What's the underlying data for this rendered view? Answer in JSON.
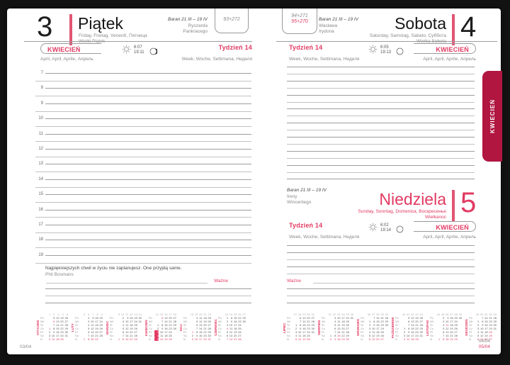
{
  "colors": {
    "accent": "#e23a62",
    "tab": "#b11640",
    "day_bar": "#e25573"
  },
  "side_tab": "KWIECIEŃ",
  "left": {
    "day_number": "3",
    "day_name": "Piątek",
    "day_langs": "Friday, Freitag, Venerdì, Пятница",
    "holiday": "Wielki Piątek",
    "zodiac": "Baran 21 III – 19 IV",
    "name_day_1": "Ryszarda",
    "name_day_2": "Pankracego",
    "day_of_year": "93+272",
    "month": "KWIECIEŃ",
    "month_langs": "April, April, Aprile, Апрель",
    "week": "Tydzień 14",
    "week_langs": "Week, Woche, Settimana, Неделя",
    "sunrise": "6:07",
    "sunset": "19:11",
    "hours": [
      7,
      8,
      9,
      10,
      11,
      12,
      13,
      14,
      15,
      16,
      17,
      18,
      19
    ],
    "quote": "Najpiękniejszych chwil w życiu nie zaplanujesz. One przyjdą same.",
    "quote_author": "Phil Bosmans",
    "important": "Ważne",
    "footer": "03/04"
  },
  "right": {
    "sat": {
      "day_number": "4",
      "day_name": "Sobota",
      "day_langs": "Saturday, Samstag, Sabato, Суббота",
      "holiday": "Wielka Sobota",
      "zodiac": "Baran 21 III – 19 IV",
      "name_day_1": "Wacława",
      "name_day_2": "Irydona",
      "day_of_year_1": "94+271",
      "day_of_year_2": "95+270",
      "sunrise": "6:05",
      "sunset": "19:13"
    },
    "sun": {
      "day_number": "5",
      "day_name": "Niedziela",
      "day_langs": "Sunday, Sonntag, Domenica, Воскресенье",
      "holiday": "Wielkanoc",
      "zodiac": "Baran 21 III – 19 IV",
      "name_day_1": "Ireny",
      "name_day_2": "Wincentego",
      "sunrise": "6:02",
      "sunset": "19:14"
    },
    "month": "KWIECIEŃ",
    "month_langs": "April, April, Aprile, Апрель",
    "week": "Tydzień 14",
    "week_langs": "Week, Woche, Settimana, Неделя",
    "important": "Ważne",
    "footer_1": "04/04",
    "footer_2": "05/04"
  },
  "calendars": {
    "day_labels": [
      "Pn",
      "Wt",
      "Śr",
      "Cz",
      "Pt",
      "So",
      "N"
    ],
    "left_months": [
      {
        "name": "STYCZEŃ",
        "weeks": [
          1,
          2,
          3,
          4,
          5
        ],
        "holidays": [
          1,
          6
        ],
        "rows": [
          [
            "",
            5,
            12,
            19,
            26
          ],
          [
            "",
            6,
            13,
            20,
            27
          ],
          [
            "",
            7,
            14,
            21,
            28
          ],
          [
            1,
            8,
            15,
            22,
            29
          ],
          [
            2,
            9,
            16,
            23,
            30
          ],
          [
            3,
            10,
            17,
            24,
            31
          ],
          [
            4,
            11,
            18,
            25,
            ""
          ]
        ]
      },
      {
        "name": "LUTY",
        "weeks": [
          5,
          6,
          7,
          8,
          9
        ],
        "holidays": [],
        "rows": [
          [
            "",
            2,
            9,
            16,
            23
          ],
          [
            "",
            3,
            10,
            17,
            24
          ],
          [
            "",
            4,
            11,
            18,
            25
          ],
          [
            "",
            5,
            12,
            19,
            26
          ],
          [
            "",
            6,
            13,
            20,
            27
          ],
          [
            "",
            7,
            14,
            21,
            28
          ],
          [
            1,
            8,
            15,
            22,
            ""
          ]
        ]
      },
      {
        "name": "MARZEC",
        "weeks": [
          9,
          10,
          11,
          12,
          13,
          14
        ],
        "holidays": [],
        "rows": [
          [
            "",
            2,
            9,
            16,
            23,
            30
          ],
          [
            "",
            3,
            10,
            17,
            24,
            31
          ],
          [
            "",
            4,
            11,
            18,
            25,
            ""
          ],
          [
            "",
            5,
            12,
            19,
            26,
            ""
          ],
          [
            "",
            6,
            13,
            20,
            27,
            ""
          ],
          [
            "",
            7,
            14,
            21,
            28,
            ""
          ],
          [
            1,
            8,
            15,
            22,
            29,
            ""
          ]
        ]
      },
      {
        "name": "KWIECIEŃ",
        "weeks": [
          14,
          15,
          16,
          17,
          18
        ],
        "holidays": [
          5,
          6
        ],
        "current": [
          3,
          4,
          5
        ],
        "rows": [
          [
            "",
            6,
            13,
            20,
            27
          ],
          [
            "",
            7,
            14,
            21,
            28
          ],
          [
            1,
            8,
            15,
            22,
            29
          ],
          [
            2,
            9,
            16,
            23,
            30
          ],
          [
            3,
            10,
            17,
            24,
            ""
          ],
          [
            4,
            11,
            18,
            25,
            ""
          ],
          [
            5,
            12,
            19,
            26,
            ""
          ]
        ]
      },
      {
        "name": "MAJ",
        "weeks": [
          18,
          19,
          20,
          21,
          22
        ],
        "holidays": [
          1,
          3
        ],
        "rows": [
          [
            "",
            4,
            11,
            18,
            25
          ],
          [
            "",
            5,
            12,
            19,
            26
          ],
          [
            "",
            6,
            13,
            20,
            27
          ],
          [
            "",
            7,
            14,
            21,
            28
          ],
          [
            1,
            8,
            15,
            22,
            29
          ],
          [
            2,
            9,
            16,
            23,
            30
          ],
          [
            3,
            10,
            17,
            24,
            31
          ]
        ]
      },
      {
        "name": "CZERWIEC",
        "weeks": [
          23,
          24,
          25,
          26,
          27
        ],
        "holidays": [
          4
        ],
        "rows": [
          [
            1,
            8,
            15,
            22,
            29
          ],
          [
            2,
            9,
            16,
            23,
            30
          ],
          [
            3,
            10,
            17,
            24,
            ""
          ],
          [
            4,
            11,
            18,
            25,
            ""
          ],
          [
            5,
            12,
            19,
            26,
            ""
          ],
          [
            6,
            13,
            20,
            27,
            ""
          ],
          [
            7,
            14,
            21,
            28,
            ""
          ]
        ]
      }
    ],
    "right_months": [
      {
        "name": "LIPIEC",
        "weeks": [
          27,
          28,
          29,
          30,
          31
        ],
        "holidays": [],
        "rows": [
          [
            "",
            6,
            13,
            20,
            27
          ],
          [
            "",
            7,
            14,
            21,
            28
          ],
          [
            1,
            8,
            15,
            22,
            29
          ],
          [
            2,
            9,
            16,
            23,
            30
          ],
          [
            3,
            10,
            17,
            24,
            31
          ],
          [
            4,
            11,
            18,
            25,
            ""
          ],
          [
            5,
            12,
            19,
            26,
            ""
          ]
        ]
      },
      {
        "name": "SIERPIEŃ",
        "weeks": [
          31,
          32,
          33,
          34,
          35,
          36
        ],
        "holidays": [
          15
        ],
        "rows": [
          [
            "",
            3,
            10,
            17,
            24,
            31
          ],
          [
            "",
            4,
            11,
            18,
            25,
            ""
          ],
          [
            "",
            5,
            12,
            19,
            26,
            ""
          ],
          [
            "",
            6,
            13,
            20,
            27,
            ""
          ],
          [
            "",
            7,
            14,
            21,
            28,
            ""
          ],
          [
            1,
            8,
            15,
            22,
            29,
            ""
          ],
          [
            2,
            9,
            16,
            23,
            30,
            ""
          ]
        ]
      },
      {
        "name": "WRZESIEŃ",
        "weeks": [
          36,
          37,
          38,
          39,
          40
        ],
        "holidays": [],
        "rows": [
          [
            "",
            7,
            14,
            21,
            28
          ],
          [
            1,
            8,
            15,
            22,
            29
          ],
          [
            2,
            9,
            16,
            23,
            30
          ],
          [
            3,
            10,
            17,
            24,
            ""
          ],
          [
            4,
            11,
            18,
            25,
            ""
          ],
          [
            5,
            12,
            19,
            26,
            ""
          ],
          [
            6,
            13,
            20,
            27,
            ""
          ]
        ]
      },
      {
        "name": "PAŹDZIERNIK",
        "weeks": [
          40,
          41,
          42,
          43,
          44
        ],
        "holidays": [],
        "rows": [
          [
            "",
            5,
            12,
            19,
            26
          ],
          [
            "",
            6,
            13,
            20,
            27
          ],
          [
            "",
            7,
            14,
            21,
            28
          ],
          [
            1,
            8,
            15,
            22,
            29
          ],
          [
            2,
            9,
            16,
            23,
            30
          ],
          [
            3,
            10,
            17,
            24,
            31
          ],
          [
            4,
            11,
            18,
            25,
            ""
          ]
        ]
      },
      {
        "name": "LISTOPAD",
        "weeks": [
          44,
          45,
          46,
          47,
          48,
          49
        ],
        "holidays": [
          1,
          11
        ],
        "rows": [
          [
            "",
            2,
            9,
            16,
            23,
            30
          ],
          [
            "",
            3,
            10,
            17,
            24,
            ""
          ],
          [
            "",
            4,
            11,
            18,
            25,
            ""
          ],
          [
            "",
            5,
            12,
            19,
            26,
            ""
          ],
          [
            "",
            6,
            13,
            20,
            27,
            ""
          ],
          [
            "",
            7,
            14,
            21,
            28,
            ""
          ],
          [
            1,
            8,
            15,
            22,
            29,
            ""
          ]
        ]
      },
      {
        "name": "GRUDZIEŃ",
        "weeks": [
          49,
          50,
          51,
          52,
          53
        ],
        "holidays": [
          25,
          26
        ],
        "rows": [
          [
            "",
            7,
            14,
            21,
            28
          ],
          [
            1,
            8,
            15,
            22,
            29
          ],
          [
            2,
            9,
            16,
            23,
            30
          ],
          [
            3,
            10,
            17,
            24,
            31
          ],
          [
            4,
            11,
            18,
            25,
            ""
          ],
          [
            5,
            12,
            19,
            26,
            ""
          ],
          [
            6,
            13,
            20,
            27,
            ""
          ]
        ]
      }
    ]
  }
}
